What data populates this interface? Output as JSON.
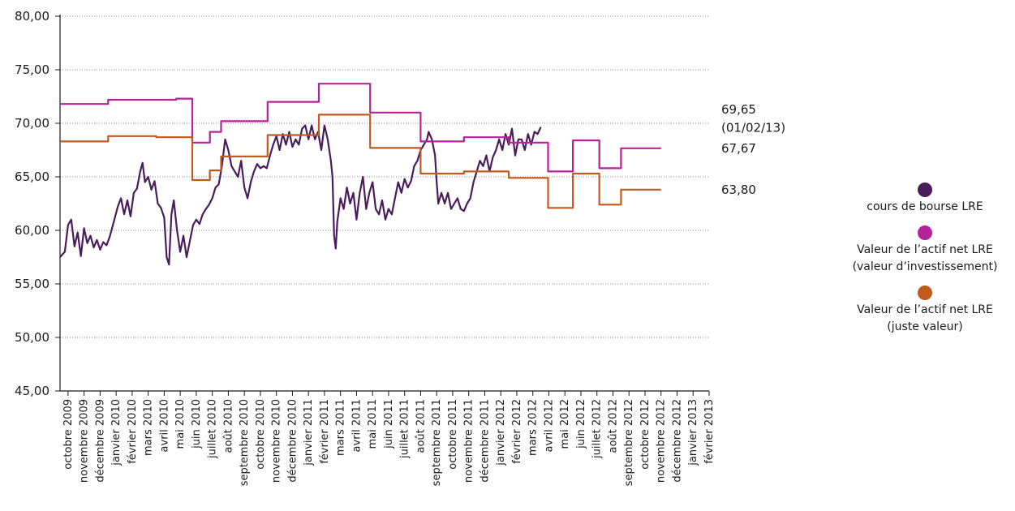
{
  "chart_data": {
    "type": "line",
    "title": "",
    "xlabel": "",
    "ylabel": "",
    "ylim": [
      45,
      80
    ],
    "yticks": [
      "45,00",
      "50,00",
      "55,00",
      "60,00",
      "65,00",
      "70,00",
      "75,00",
      "80,00"
    ],
    "ytick_values": [
      45,
      50,
      55,
      60,
      65,
      70,
      75,
      80
    ],
    "grid": "horizontal dotted",
    "legend_position": "right",
    "categories": [
      "octobre 2009",
      "novembre 2009",
      "décembre 2009",
      "janvier 2010",
      "février 2010",
      "mars 2010",
      "avril 2010",
      "mai 2010",
      "juin 2010",
      "juillet 2010",
      "août 2010",
      "septembre 2010",
      "octobre 2010",
      "novembre 2010",
      "décembre 2010",
      "janvier 2011",
      "février 2011",
      "mars 2011",
      "avril 2011",
      "mai 2011",
      "juin 2011",
      "juillet 2011",
      "août 2011",
      "septembre 2011",
      "octobre 2011",
      "novembre 2011",
      "décembre 2011",
      "janvier 2012",
      "février 2012",
      "mars 2012",
      "avril 2012",
      "mai 2012",
      "juin 2012",
      "juillet 2012",
      "août 2012",
      "septembre 2012",
      "octobre 2012",
      "novembre 2012",
      "décembre 2012",
      "janvier 2013",
      "février 2013"
    ],
    "series": [
      {
        "name": "cours de bourse LRE",
        "color": "#4a1c5c",
        "points": [
          [
            0,
            57.5
          ],
          [
            0.3,
            58.0
          ],
          [
            0.5,
            60.5
          ],
          [
            0.7,
            61.0
          ],
          [
            0.9,
            58.5
          ],
          [
            1.1,
            59.8
          ],
          [
            1.3,
            57.6
          ],
          [
            1.5,
            60.2
          ],
          [
            1.7,
            58.8
          ],
          [
            1.9,
            59.5
          ],
          [
            2.1,
            58.4
          ],
          [
            2.3,
            59.1
          ],
          [
            2.5,
            58.2
          ],
          [
            2.7,
            58.9
          ],
          [
            2.9,
            58.6
          ],
          [
            3.1,
            59.4
          ],
          [
            3.3,
            60.5
          ],
          [
            3.6,
            62.2
          ],
          [
            3.8,
            63.0
          ],
          [
            4.0,
            61.5
          ],
          [
            4.2,
            62.8
          ],
          [
            4.4,
            61.3
          ],
          [
            4.6,
            63.5
          ],
          [
            4.8,
            63.9
          ],
          [
            5.0,
            65.5
          ],
          [
            5.15,
            66.3
          ],
          [
            5.3,
            64.5
          ],
          [
            5.5,
            65.0
          ],
          [
            5.7,
            63.8
          ],
          [
            5.9,
            64.6
          ],
          [
            6.1,
            62.5
          ],
          [
            6.3,
            62.1
          ],
          [
            6.5,
            61.2
          ],
          [
            6.65,
            57.5
          ],
          [
            6.8,
            56.8
          ],
          [
            6.95,
            61.5
          ],
          [
            7.1,
            62.8
          ],
          [
            7.3,
            60.0
          ],
          [
            7.5,
            58.0
          ],
          [
            7.7,
            59.5
          ],
          [
            7.9,
            57.5
          ],
          [
            8.1,
            59.0
          ],
          [
            8.3,
            60.5
          ],
          [
            8.5,
            61.0
          ],
          [
            8.7,
            60.6
          ],
          [
            8.9,
            61.5
          ],
          [
            9.1,
            62.0
          ],
          [
            9.3,
            62.4
          ],
          [
            9.5,
            63.0
          ],
          [
            9.7,
            64.0
          ],
          [
            9.9,
            64.3
          ],
          [
            10.1,
            66.0
          ],
          [
            10.3,
            68.5
          ],
          [
            10.5,
            67.5
          ],
          [
            10.7,
            66.0
          ],
          [
            10.9,
            65.5
          ],
          [
            11.1,
            65.0
          ],
          [
            11.3,
            66.5
          ],
          [
            11.5,
            64.0
          ],
          [
            11.7,
            63.0
          ],
          [
            11.9,
            64.5
          ],
          [
            12.1,
            65.5
          ],
          [
            12.3,
            66.2
          ],
          [
            12.5,
            65.8
          ],
          [
            12.7,
            66.0
          ],
          [
            12.9,
            65.8
          ],
          [
            13.1,
            67.0
          ],
          [
            13.3,
            68.0
          ],
          [
            13.5,
            68.8
          ],
          [
            13.7,
            67.5
          ],
          [
            13.9,
            69.0
          ],
          [
            14.1,
            68.0
          ],
          [
            14.3,
            69.2
          ],
          [
            14.5,
            67.8
          ],
          [
            14.7,
            68.5
          ],
          [
            14.9,
            68.0
          ],
          [
            15.1,
            69.5
          ],
          [
            15.3,
            69.8
          ],
          [
            15.5,
            68.5
          ],
          [
            15.7,
            69.8
          ],
          [
            15.9,
            68.5
          ],
          [
            16.1,
            69.2
          ],
          [
            16.3,
            67.5
          ],
          [
            16.5,
            69.8
          ],
          [
            16.7,
            68.5
          ],
          [
            16.9,
            66.5
          ],
          [
            17.0,
            65.0
          ],
          [
            17.1,
            59.5
          ],
          [
            17.2,
            58.3
          ],
          [
            17.3,
            60.8
          ],
          [
            17.5,
            63.0
          ],
          [
            17.7,
            62.0
          ],
          [
            17.9,
            64.0
          ],
          [
            18.1,
            62.5
          ],
          [
            18.3,
            63.5
          ],
          [
            18.5,
            61.0
          ],
          [
            18.7,
            63.5
          ],
          [
            18.9,
            65.0
          ],
          [
            19.1,
            62.0
          ],
          [
            19.3,
            63.5
          ],
          [
            19.5,
            64.5
          ],
          [
            19.7,
            62.0
          ],
          [
            19.9,
            61.5
          ],
          [
            20.1,
            62.8
          ],
          [
            20.3,
            61.0
          ],
          [
            20.5,
            62.0
          ],
          [
            20.7,
            61.5
          ],
          [
            20.9,
            63.0
          ],
          [
            21.1,
            64.5
          ],
          [
            21.3,
            63.5
          ],
          [
            21.5,
            64.8
          ],
          [
            21.7,
            64.0
          ],
          [
            21.9,
            64.6
          ],
          [
            22.1,
            66.0
          ],
          [
            22.3,
            66.5
          ],
          [
            22.5,
            67.5
          ],
          [
            22.7,
            68.0
          ],
          [
            22.9,
            68.5
          ],
          [
            23.0,
            69.2
          ],
          [
            23.2,
            68.5
          ],
          [
            23.4,
            67.0
          ],
          [
            23.5,
            64.5
          ],
          [
            23.6,
            62.5
          ],
          [
            23.8,
            63.5
          ],
          [
            24.0,
            62.5
          ],
          [
            24.2,
            63.5
          ],
          [
            24.4,
            62.0
          ],
          [
            24.6,
            62.5
          ],
          [
            24.8,
            63.0
          ],
          [
            25.0,
            62.0
          ],
          [
            25.2,
            61.8
          ],
          [
            25.4,
            62.5
          ],
          [
            25.6,
            63.0
          ],
          [
            25.8,
            64.5
          ],
          [
            26.0,
            65.5
          ],
          [
            26.2,
            66.5
          ],
          [
            26.4,
            66.0
          ],
          [
            26.6,
            67.0
          ],
          [
            26.8,
            65.5
          ],
          [
            27.0,
            66.8
          ],
          [
            27.2,
            67.5
          ],
          [
            27.4,
            68.5
          ],
          [
            27.6,
            67.5
          ],
          [
            27.8,
            69.0
          ],
          [
            28.0,
            68.0
          ],
          [
            28.2,
            69.5
          ],
          [
            28.4,
            67.0
          ],
          [
            28.6,
            68.5
          ],
          [
            28.8,
            68.5
          ],
          [
            29.0,
            67.5
          ],
          [
            29.2,
            69.0
          ],
          [
            29.4,
            68.0
          ],
          [
            29.6,
            69.2
          ],
          [
            29.8,
            69.0
          ],
          [
            30.0,
            69.65
          ]
        ]
      },
      {
        "name": "Valeur de l’actif net LRE\n(valeur d’investissement)",
        "color": "#b5229a",
        "points": [
          [
            0,
            71.8
          ],
          [
            3.0,
            71.8
          ],
          [
            3.0,
            72.2
          ],
          [
            7.25,
            72.2
          ],
          [
            7.25,
            72.3
          ],
          [
            8.25,
            72.3
          ],
          [
            8.25,
            68.2
          ],
          [
            9.35,
            68.2
          ],
          [
            9.35,
            69.2
          ],
          [
            10.05,
            69.2
          ],
          [
            10.05,
            70.2
          ],
          [
            12.95,
            70.2
          ],
          [
            12.95,
            72.0
          ],
          [
            16.15,
            72.0
          ],
          [
            16.15,
            73.7
          ],
          [
            19.35,
            73.7
          ],
          [
            19.35,
            71.0
          ],
          [
            22.5,
            71.0
          ],
          [
            22.5,
            68.3
          ],
          [
            25.2,
            68.3
          ],
          [
            25.2,
            68.7
          ],
          [
            28.0,
            68.7
          ],
          [
            28.0,
            68.2
          ],
          [
            30.45,
            68.2
          ],
          [
            30.45,
            65.5
          ],
          [
            32.0,
            65.5
          ],
          [
            32.0,
            68.4
          ],
          [
            33.65,
            68.4
          ],
          [
            33.65,
            65.8
          ],
          [
            35.0,
            65.8
          ],
          [
            35.0,
            67.67
          ],
          [
            37.5,
            67.67
          ]
        ]
      },
      {
        "name": "Valeur de l’actif net LRE\n(juste valeur)",
        "color": "#c05a1e",
        "points": [
          [
            0,
            68.3
          ],
          [
            3.0,
            68.3
          ],
          [
            3.0,
            68.8
          ],
          [
            6.0,
            68.8
          ],
          [
            6.0,
            68.7
          ],
          [
            8.25,
            68.7
          ],
          [
            8.25,
            64.7
          ],
          [
            9.35,
            64.7
          ],
          [
            9.35,
            65.6
          ],
          [
            10.05,
            65.6
          ],
          [
            10.05,
            66.9
          ],
          [
            12.95,
            66.9
          ],
          [
            12.95,
            68.9
          ],
          [
            16.15,
            68.9
          ],
          [
            16.15,
            70.8
          ],
          [
            19.35,
            70.8
          ],
          [
            19.35,
            67.7
          ],
          [
            22.5,
            67.7
          ],
          [
            22.5,
            65.3
          ],
          [
            25.2,
            65.3
          ],
          [
            25.2,
            65.5
          ],
          [
            28.0,
            65.5
          ],
          [
            28.0,
            64.9
          ],
          [
            30.45,
            64.9
          ],
          [
            30.45,
            62.1
          ],
          [
            32.0,
            62.1
          ],
          [
            32.0,
            65.3
          ],
          [
            33.65,
            65.3
          ],
          [
            33.65,
            62.4
          ],
          [
            35.0,
            62.4
          ],
          [
            35.0,
            63.8
          ],
          [
            37.5,
            63.8
          ]
        ]
      }
    ],
    "annotations": [
      {
        "text": "69,65",
        "y": 71.3
      },
      {
        "text": "(01/02/13)",
        "y": 69.6
      },
      {
        "text": "67,67",
        "y": 67.67
      },
      {
        "text": "63,80",
        "y": 63.8
      }
    ]
  },
  "legend": [
    {
      "label": "cours de bourse LRE",
      "color": "#4a1c5c"
    },
    {
      "label": "Valeur de l’actif net LRE\n(valeur d’investissement)",
      "color": "#b5229a"
    },
    {
      "label": "Valeur de l’actif net LRE\n(juste valeur)",
      "color": "#c05a1e"
    }
  ]
}
